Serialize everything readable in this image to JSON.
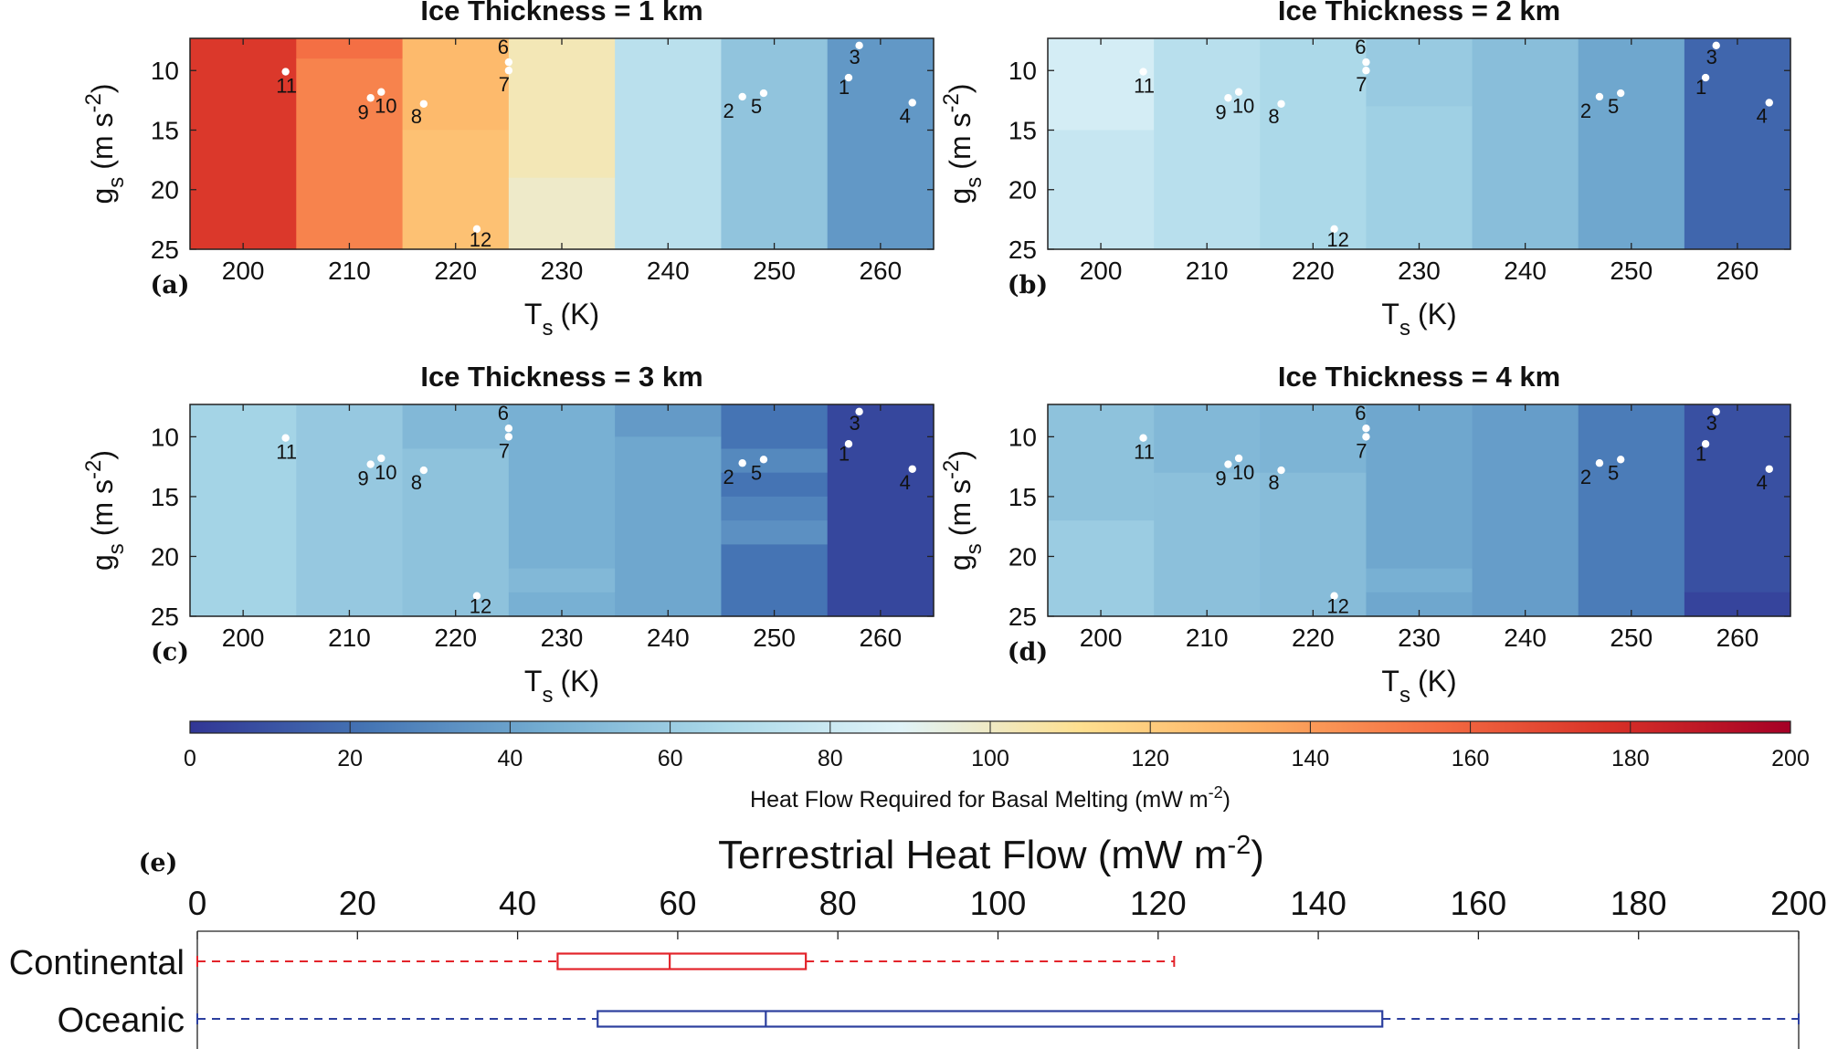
{
  "chart_data": [
    {
      "panel": "(a)",
      "type": "heatmap",
      "title": "Ice Thickness = 1 km",
      "xlabel": "T_s (K)",
      "xlabel_main": "T",
      "xlabel_sub": "s",
      "xlabel_unit": "(K)",
      "ylabel": "g_s (m s^-2)",
      "ylabel_main": "g",
      "ylabel_sub": "s",
      "ylabel_unit": "(m s",
      "ylabel_sup": "-2",
      "ylabel_close": ")",
      "xlim": [
        195,
        265
      ],
      "ylim": [
        25,
        7.3
      ],
      "x_ticks": [
        200,
        210,
        220,
        230,
        240,
        250,
        260
      ],
      "y_ticks": [
        10,
        15,
        20,
        25
      ],
      "cells": [
        {
          "x": [
            195,
            205
          ],
          "y": [
            7.3,
            25
          ],
          "value": 175
        },
        {
          "x": [
            205,
            215
          ],
          "y": [
            7.3,
            9
          ],
          "value": 155
        },
        {
          "x": [
            205,
            215
          ],
          "y": [
            9,
            25
          ],
          "value": 148
        },
        {
          "x": [
            215,
            225
          ],
          "y": [
            7.3,
            15
          ],
          "value": 128
        },
        {
          "x": [
            215,
            225
          ],
          "y": [
            15,
            25
          ],
          "value": 125
        },
        {
          "x": [
            225,
            235
          ],
          "y": [
            7.3,
            19
          ],
          "value": 103
        },
        {
          "x": [
            225,
            235
          ],
          "y": [
            19,
            25
          ],
          "value": 99
        },
        {
          "x": [
            235,
            245
          ],
          "y": [
            7.3,
            25
          ],
          "value": 73
        },
        {
          "x": [
            245,
            255
          ],
          "y": [
            7.3,
            25
          ],
          "value": 56
        },
        {
          "x": [
            255,
            265
          ],
          "y": [
            7.3,
            25
          ],
          "value": 36
        }
      ]
    },
    {
      "panel": "(b)",
      "type": "heatmap",
      "title": "Ice Thickness = 2 km",
      "xlabel": "T_s (K)",
      "xlabel_main": "T",
      "xlabel_sub": "s",
      "xlabel_unit": "(K)",
      "ylabel": "g_s (m s^-2)",
      "ylabel_main": "g",
      "ylabel_sub": "s",
      "ylabel_unit": "(m s",
      "ylabel_sup": "-2",
      "ylabel_close": ")",
      "xlim": [
        195,
        265
      ],
      "ylim": [
        25,
        7.3
      ],
      "x_ticks": [
        200,
        210,
        220,
        230,
        240,
        250,
        260
      ],
      "y_ticks": [
        10,
        15,
        20,
        25
      ],
      "cells": [
        {
          "x": [
            195,
            205
          ],
          "y": [
            7.3,
            15
          ],
          "value": 84
        },
        {
          "x": [
            195,
            205
          ],
          "y": [
            15,
            25
          ],
          "value": 78
        },
        {
          "x": [
            205,
            215
          ],
          "y": [
            7.3,
            25
          ],
          "value": 72
        },
        {
          "x": [
            215,
            225
          ],
          "y": [
            7.3,
            25
          ],
          "value": 67
        },
        {
          "x": [
            225,
            235
          ],
          "y": [
            7.3,
            13
          ],
          "value": 59
        },
        {
          "x": [
            225,
            235
          ],
          "y": [
            13,
            25
          ],
          "value": 62
        },
        {
          "x": [
            235,
            245
          ],
          "y": [
            7.3,
            25
          ],
          "value": 53
        },
        {
          "x": [
            245,
            255
          ],
          "y": [
            7.3,
            25
          ],
          "value": 42
        },
        {
          "x": [
            255,
            265
          ],
          "y": [
            7.3,
            25
          ],
          "value": 17
        }
      ]
    },
    {
      "panel": "(c)",
      "type": "heatmap",
      "title": "Ice Thickness = 3 km",
      "xlabel": "T_s (K)",
      "xlabel_main": "T",
      "xlabel_sub": "s",
      "xlabel_unit": "(K)",
      "ylabel": "g_s (m s^-2)",
      "ylabel_main": "g",
      "ylabel_sub": "s",
      "ylabel_unit": "(m s",
      "ylabel_sup": "-2",
      "ylabel_close": ")",
      "xlim": [
        195,
        265
      ],
      "ylim": [
        25,
        7.3
      ],
      "x_ticks": [
        200,
        210,
        220,
        230,
        240,
        250,
        260
      ],
      "y_ticks": [
        10,
        15,
        20,
        25
      ],
      "cells": [
        {
          "x": [
            195,
            205
          ],
          "y": [
            7.3,
            25
          ],
          "value": 64
        },
        {
          "x": [
            205,
            215
          ],
          "y": [
            7.3,
            25
          ],
          "value": 58
        },
        {
          "x": [
            215,
            225
          ],
          "y": [
            7.3,
            11
          ],
          "value": 50
        },
        {
          "x": [
            215,
            225
          ],
          "y": [
            11,
            25
          ],
          "value": 55
        },
        {
          "x": [
            225,
            235
          ],
          "y": [
            7.3,
            21
          ],
          "value": 46
        },
        {
          "x": [
            225,
            235
          ],
          "y": [
            21,
            23
          ],
          "value": 50
        },
        {
          "x": [
            225,
            235
          ],
          "y": [
            23,
            25
          ],
          "value": 46
        },
        {
          "x": [
            235,
            245
          ],
          "y": [
            7.3,
            10
          ],
          "value": 37
        },
        {
          "x": [
            235,
            245
          ],
          "y": [
            10,
            25
          ],
          "value": 42
        },
        {
          "x": [
            245,
            255
          ],
          "y": [
            7.3,
            11
          ],
          "value": 22
        },
        {
          "x": [
            245,
            255
          ],
          "y": [
            11,
            13
          ],
          "value": 30
        },
        {
          "x": [
            245,
            255
          ],
          "y": [
            13,
            15
          ],
          "value": 22
        },
        {
          "x": [
            245,
            255
          ],
          "y": [
            15,
            17
          ],
          "value": 28
        },
        {
          "x": [
            245,
            255
          ],
          "y": [
            17,
            19
          ],
          "value": 33
        },
        {
          "x": [
            245,
            255
          ],
          "y": [
            19,
            25
          ],
          "value": 22
        },
        {
          "x": [
            255,
            265
          ],
          "y": [
            7.3,
            25
          ],
          "value": 6
        }
      ]
    },
    {
      "panel": "(d)",
      "type": "heatmap",
      "title": "Ice Thickness = 4 km",
      "xlabel": "T_s (K)",
      "xlabel_main": "T",
      "xlabel_sub": "s",
      "xlabel_unit": "(K)",
      "ylabel": "g_s (m s^-2)",
      "ylabel_main": "g",
      "ylabel_sub": "s",
      "ylabel_unit": "(m s",
      "ylabel_sup": "-2",
      "ylabel_close": ")",
      "xlim": [
        195,
        265
      ],
      "ylim": [
        25,
        7.3
      ],
      "x_ticks": [
        200,
        210,
        220,
        230,
        240,
        250,
        260
      ],
      "y_ticks": [
        10,
        15,
        20,
        25
      ],
      "cells": [
        {
          "x": [
            195,
            205
          ],
          "y": [
            7.3,
            17
          ],
          "value": 55
        },
        {
          "x": [
            195,
            205
          ],
          "y": [
            17,
            25
          ],
          "value": 60
        },
        {
          "x": [
            205,
            215
          ],
          "y": [
            7.3,
            13
          ],
          "value": 50
        },
        {
          "x": [
            205,
            215
          ],
          "y": [
            13,
            25
          ],
          "value": 54
        },
        {
          "x": [
            215,
            225
          ],
          "y": [
            7.3,
            13
          ],
          "value": 48
        },
        {
          "x": [
            215,
            225
          ],
          "y": [
            13,
            25
          ],
          "value": 52
        },
        {
          "x": [
            225,
            235
          ],
          "y": [
            7.3,
            21
          ],
          "value": 42
        },
        {
          "x": [
            225,
            235
          ],
          "y": [
            21,
            23
          ],
          "value": 46
        },
        {
          "x": [
            225,
            235
          ],
          "y": [
            23,
            25
          ],
          "value": 42
        },
        {
          "x": [
            235,
            245
          ],
          "y": [
            7.3,
            25
          ],
          "value": 38
        },
        {
          "x": [
            245,
            255
          ],
          "y": [
            7.3,
            25
          ],
          "value": 25
        },
        {
          "x": [
            255,
            265
          ],
          "y": [
            7.3,
            23
          ],
          "value": 9
        },
        {
          "x": [
            255,
            265
          ],
          "y": [
            23,
            25
          ],
          "value": 5
        }
      ]
    },
    {
      "panel": "(e)",
      "type": "box",
      "title": "Terrestrial Heat Flow",
      "title_unit": "(mW m",
      "title_sup": "-2",
      "title_close": ")",
      "xlim": [
        0,
        200
      ],
      "x_ticks": [
        0,
        20,
        40,
        60,
        80,
        100,
        120,
        140,
        160,
        180,
        200
      ],
      "series": [
        {
          "name": "Continental",
          "color": "#e3242b",
          "whisker_low": 0,
          "q1": 45,
          "median": 59,
          "q3": 76,
          "whisker_high": 122
        },
        {
          "name": "Oceanic",
          "color": "#2c3f9e",
          "whisker_low": 0,
          "q1": 50,
          "median": 71,
          "q3": 148,
          "whisker_high": 200
        }
      ]
    }
  ],
  "points": [
    {
      "label": "1",
      "T": 257,
      "g": 10.6
    },
    {
      "label": "2",
      "T": 247,
      "g": 12.2
    },
    {
      "label": "3",
      "T": 258,
      "g": 7.9
    },
    {
      "label": "4",
      "T": 263,
      "g": 12.7
    },
    {
      "label": "5",
      "T": 249,
      "g": 11.9
    },
    {
      "label": "6",
      "T": 225,
      "g": 9.3
    },
    {
      "label": "7",
      "T": 225,
      "g": 10.0
    },
    {
      "label": "8",
      "T": 217,
      "g": 12.8
    },
    {
      "label": "9",
      "T": 212,
      "g": 12.3
    },
    {
      "label": "10",
      "T": 213,
      "g": 11.8
    },
    {
      "label": "11",
      "T": 204,
      "g": 10.1
    },
    {
      "label": "12",
      "T": 222,
      "g": 23.3
    }
  ],
  "colorbar": {
    "label": "Heat Flow Required for Basal Melting",
    "label_unit": "(mW m",
    "label_sup": "-2",
    "label_close": ")",
    "range": [
      0,
      200
    ],
    "ticks": [
      0,
      20,
      40,
      60,
      80,
      100,
      120,
      140,
      160,
      180,
      200
    ],
    "colormap": [
      "#313695",
      "#4575b4",
      "#74add1",
      "#abd9e9",
      "#e0f3f8",
      "#fee090",
      "#fdae61",
      "#f46d43",
      "#d73027",
      "#a50026"
    ]
  }
}
